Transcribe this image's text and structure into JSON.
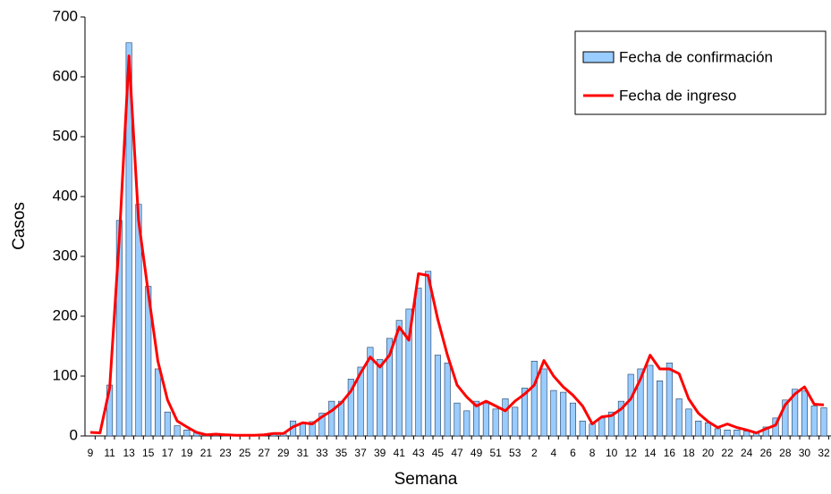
{
  "chart_data": {
    "type": "bar-line",
    "x_label": "Semana",
    "y_label": "Casos",
    "categories": [
      "9",
      null,
      "11",
      null,
      "13",
      null,
      "15",
      null,
      "17",
      null,
      "19",
      null,
      "21",
      null,
      "23",
      null,
      "25",
      null,
      "27",
      null,
      "29",
      null,
      "31",
      null,
      "33",
      null,
      "35",
      null,
      "37",
      null,
      "39",
      null,
      "41",
      null,
      "43",
      null,
      "45",
      null,
      "47",
      null,
      "49",
      null,
      "51",
      null,
      "53",
      null,
      "2",
      null,
      "4",
      null,
      "6",
      null,
      "8",
      null,
      "10",
      null,
      "12",
      null,
      "14",
      null,
      "16",
      null,
      "18",
      null,
      "20",
      null,
      "22",
      null,
      "24",
      null,
      "26",
      null,
      "28",
      null,
      "30",
      null,
      "32"
    ],
    "series": [
      {
        "name": "Fecha de confirmación",
        "kind": "bar",
        "color": "#99ccff",
        "values": [
          0,
          0,
          85,
          360,
          657,
          387,
          250,
          112,
          40,
          17,
          10,
          5,
          2,
          3,
          2,
          1,
          1,
          1,
          3,
          5,
          5,
          25,
          22,
          24,
          38,
          58,
          58,
          95,
          115,
          148,
          128,
          163,
          193,
          212,
          247,
          275,
          135,
          122,
          55,
          42,
          58,
          55,
          45,
          62,
          48,
          80,
          125,
          112,
          76,
          73,
          55,
          25,
          20,
          30,
          40,
          58,
          103,
          112,
          118,
          92,
          122,
          62,
          45,
          25,
          22,
          12,
          10,
          10,
          8,
          5,
          15,
          30,
          60,
          78,
          75,
          50,
          47
        ]
      },
      {
        "name": "Fecha de ingreso",
        "kind": "line",
        "color": "#ff0000",
        "values": [
          6,
          5,
          80,
          330,
          635,
          360,
          240,
          125,
          60,
          25,
          15,
          6,
          2,
          3,
          2,
          1,
          1,
          1,
          2,
          4,
          4,
          15,
          22,
          20,
          32,
          42,
          55,
          75,
          105,
          132,
          115,
          135,
          182,
          160,
          271,
          268,
          195,
          135,
          85,
          65,
          50,
          58,
          50,
          42,
          58,
          70,
          85,
          126,
          100,
          82,
          68,
          50,
          20,
          32,
          34,
          45,
          62,
          95,
          135,
          112,
          112,
          104,
          62,
          38,
          24,
          14,
          20,
          14,
          10,
          5,
          12,
          18,
          52,
          70,
          82,
          53,
          52
        ]
      }
    ],
    "ylim": [
      0,
      700
    ],
    "yticks": [
      0,
      100,
      200,
      300,
      400,
      500,
      600,
      700
    ]
  }
}
